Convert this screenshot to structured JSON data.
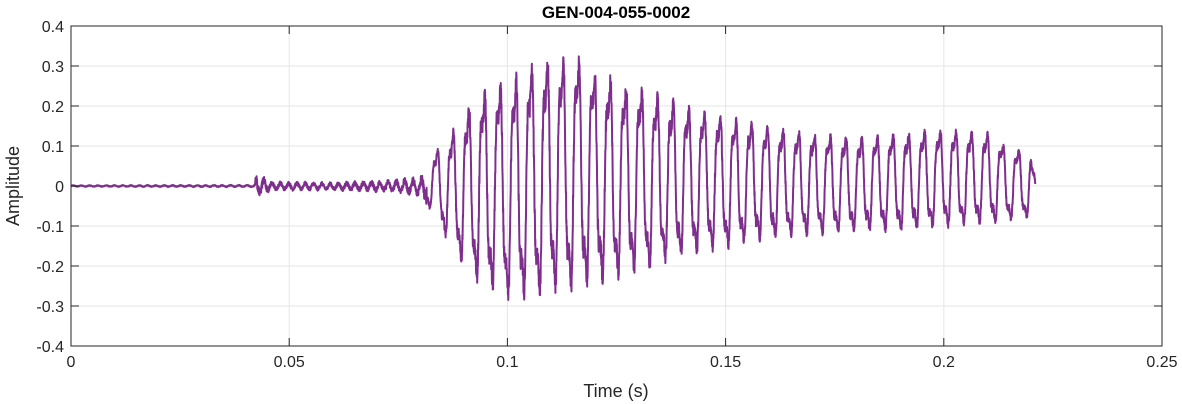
{
  "chart_data": {
    "type": "line",
    "title": "GEN-004-055-0002",
    "xlabel": "Time (s)",
    "ylabel": "Amplitude",
    "xlim": [
      0,
      0.25
    ],
    "ylim": [
      -0.4,
      0.4
    ],
    "xticks": [
      0,
      0.05,
      0.1,
      0.15,
      0.2,
      0.25
    ],
    "xtick_labels": [
      "0",
      "0.05",
      "0.1",
      "0.15",
      "0.2",
      "0.25"
    ],
    "yticks": [
      -0.4,
      -0.3,
      -0.2,
      -0.1,
      0,
      0.1,
      0.2,
      0.3,
      0.4
    ],
    "ytick_labels": [
      "-0.4",
      "-0.3",
      "-0.2",
      "-0.1",
      "0",
      "0.1",
      "0.2",
      "0.3",
      "0.4"
    ],
    "grid": true,
    "line_color": "#7e2f8e",
    "series": [
      {
        "note_envelope": "approximate amplitude envelope of the waveform (time s, peak, trough)",
        "envelope": [
          [
            0.0,
            0.002,
            -0.002
          ],
          [
            0.042,
            0.003,
            -0.003
          ],
          [
            0.0425,
            0.035,
            -0.035
          ],
          [
            0.046,
            0.012,
            -0.012
          ],
          [
            0.06,
            0.01,
            -0.012
          ],
          [
            0.075,
            0.018,
            -0.018
          ],
          [
            0.08,
            0.025,
            -0.03
          ],
          [
            0.083,
            0.09,
            -0.08
          ],
          [
            0.087,
            0.15,
            -0.17
          ],
          [
            0.091,
            0.23,
            -0.25
          ],
          [
            0.095,
            0.28,
            -0.29
          ],
          [
            0.1,
            0.3,
            -0.32
          ],
          [
            0.105,
            0.34,
            -0.32
          ],
          [
            0.11,
            0.36,
            -0.31
          ],
          [
            0.115,
            0.37,
            -0.3
          ],
          [
            0.12,
            0.33,
            -0.28
          ],
          [
            0.125,
            0.3,
            -0.27
          ],
          [
            0.13,
            0.28,
            -0.25
          ],
          [
            0.135,
            0.26,
            -0.23
          ],
          [
            0.14,
            0.23,
            -0.2
          ],
          [
            0.15,
            0.2,
            -0.18
          ],
          [
            0.16,
            0.17,
            -0.15
          ],
          [
            0.17,
            0.15,
            -0.14
          ],
          [
            0.18,
            0.14,
            -0.13
          ],
          [
            0.19,
            0.15,
            -0.13
          ],
          [
            0.2,
            0.16,
            -0.12
          ],
          [
            0.21,
            0.15,
            -0.11
          ],
          [
            0.215,
            0.11,
            -0.1
          ],
          [
            0.22,
            0.1,
            -0.09
          ],
          [
            0.221,
            0.02,
            -0.1
          ]
        ],
        "period_s": 0.0036
      }
    ]
  }
}
